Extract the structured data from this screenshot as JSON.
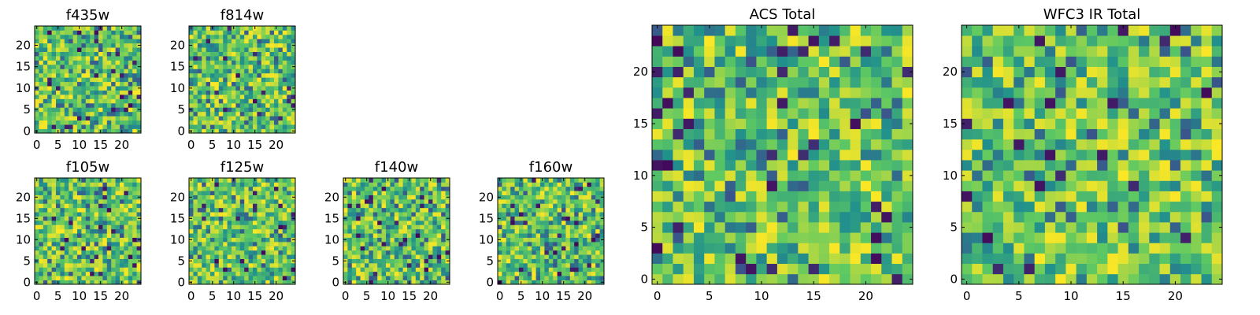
{
  "figure": {
    "background": "#ffffff"
  },
  "colormap": {
    "name": "viridis",
    "stops": [
      "#440154",
      "#3b528b",
      "#21918c",
      "#5ec962",
      "#fde725"
    ]
  },
  "chart_data": [
    {
      "type": "heatmap",
      "title": "f435w",
      "grid_size": [
        25,
        25
      ],
      "xlim": [
        0,
        24
      ],
      "ylim": [
        0,
        24
      ],
      "xticks": [
        0,
        5,
        10,
        15,
        20
      ],
      "yticks": [
        0,
        5,
        10,
        15,
        20
      ],
      "xlabel": "",
      "ylabel": "",
      "colormap": "viridis",
      "values_note": "25x25 noise image; individual pixel values not readable"
    },
    {
      "type": "heatmap",
      "title": "f814w",
      "grid_size": [
        25,
        25
      ],
      "xlim": [
        0,
        24
      ],
      "ylim": [
        0,
        24
      ],
      "xticks": [
        0,
        5,
        10,
        15,
        20
      ],
      "yticks": [
        0,
        5,
        10,
        15,
        20
      ],
      "xlabel": "",
      "ylabel": "",
      "colormap": "viridis"
    },
    {
      "type": "heatmap",
      "title": "f105w",
      "grid_size": [
        25,
        25
      ],
      "xlim": [
        0,
        24
      ],
      "ylim": [
        0,
        24
      ],
      "xticks": [
        0,
        5,
        10,
        15,
        20
      ],
      "yticks": [
        0,
        5,
        10,
        15,
        20
      ],
      "xlabel": "",
      "ylabel": "",
      "colormap": "viridis"
    },
    {
      "type": "heatmap",
      "title": "f125w",
      "grid_size": [
        25,
        25
      ],
      "xlim": [
        0,
        24
      ],
      "ylim": [
        0,
        24
      ],
      "xticks": [
        0,
        5,
        10,
        15,
        20
      ],
      "yticks": [
        0,
        5,
        10,
        15,
        20
      ],
      "xlabel": "",
      "ylabel": "",
      "colormap": "viridis"
    },
    {
      "type": "heatmap",
      "title": "f140w",
      "grid_size": [
        25,
        25
      ],
      "xlim": [
        0,
        24
      ],
      "ylim": [
        0,
        24
      ],
      "xticks": [
        0,
        5,
        10,
        15,
        20
      ],
      "yticks": [
        0,
        5,
        10,
        15,
        20
      ],
      "xlabel": "",
      "ylabel": "",
      "colormap": "viridis"
    },
    {
      "type": "heatmap",
      "title": "f160w",
      "grid_size": [
        25,
        25
      ],
      "xlim": [
        0,
        24
      ],
      "ylim": [
        0,
        24
      ],
      "xticks": [
        0,
        5,
        10,
        15,
        20
      ],
      "yticks": [
        0,
        5,
        10,
        15,
        20
      ],
      "xlabel": "",
      "ylabel": "",
      "colormap": "viridis"
    },
    {
      "type": "heatmap",
      "title": "ACS Total",
      "grid_size": [
        25,
        25
      ],
      "xlim": [
        0,
        24
      ],
      "ylim": [
        0,
        24
      ],
      "xticks": [
        0,
        5,
        10,
        15,
        20
      ],
      "yticks": [
        0,
        5,
        10,
        15,
        20
      ],
      "xlabel": "",
      "ylabel": "",
      "colormap": "viridis"
    },
    {
      "type": "heatmap",
      "title": "WFC3 IR Total",
      "grid_size": [
        25,
        25
      ],
      "xlim": [
        0,
        24
      ],
      "ylim": [
        0,
        24
      ],
      "xticks": [
        0,
        5,
        10,
        15,
        20
      ],
      "yticks": [
        0,
        5,
        10,
        15,
        20
      ],
      "xlabel": "",
      "ylabel": "",
      "colormap": "viridis"
    }
  ]
}
